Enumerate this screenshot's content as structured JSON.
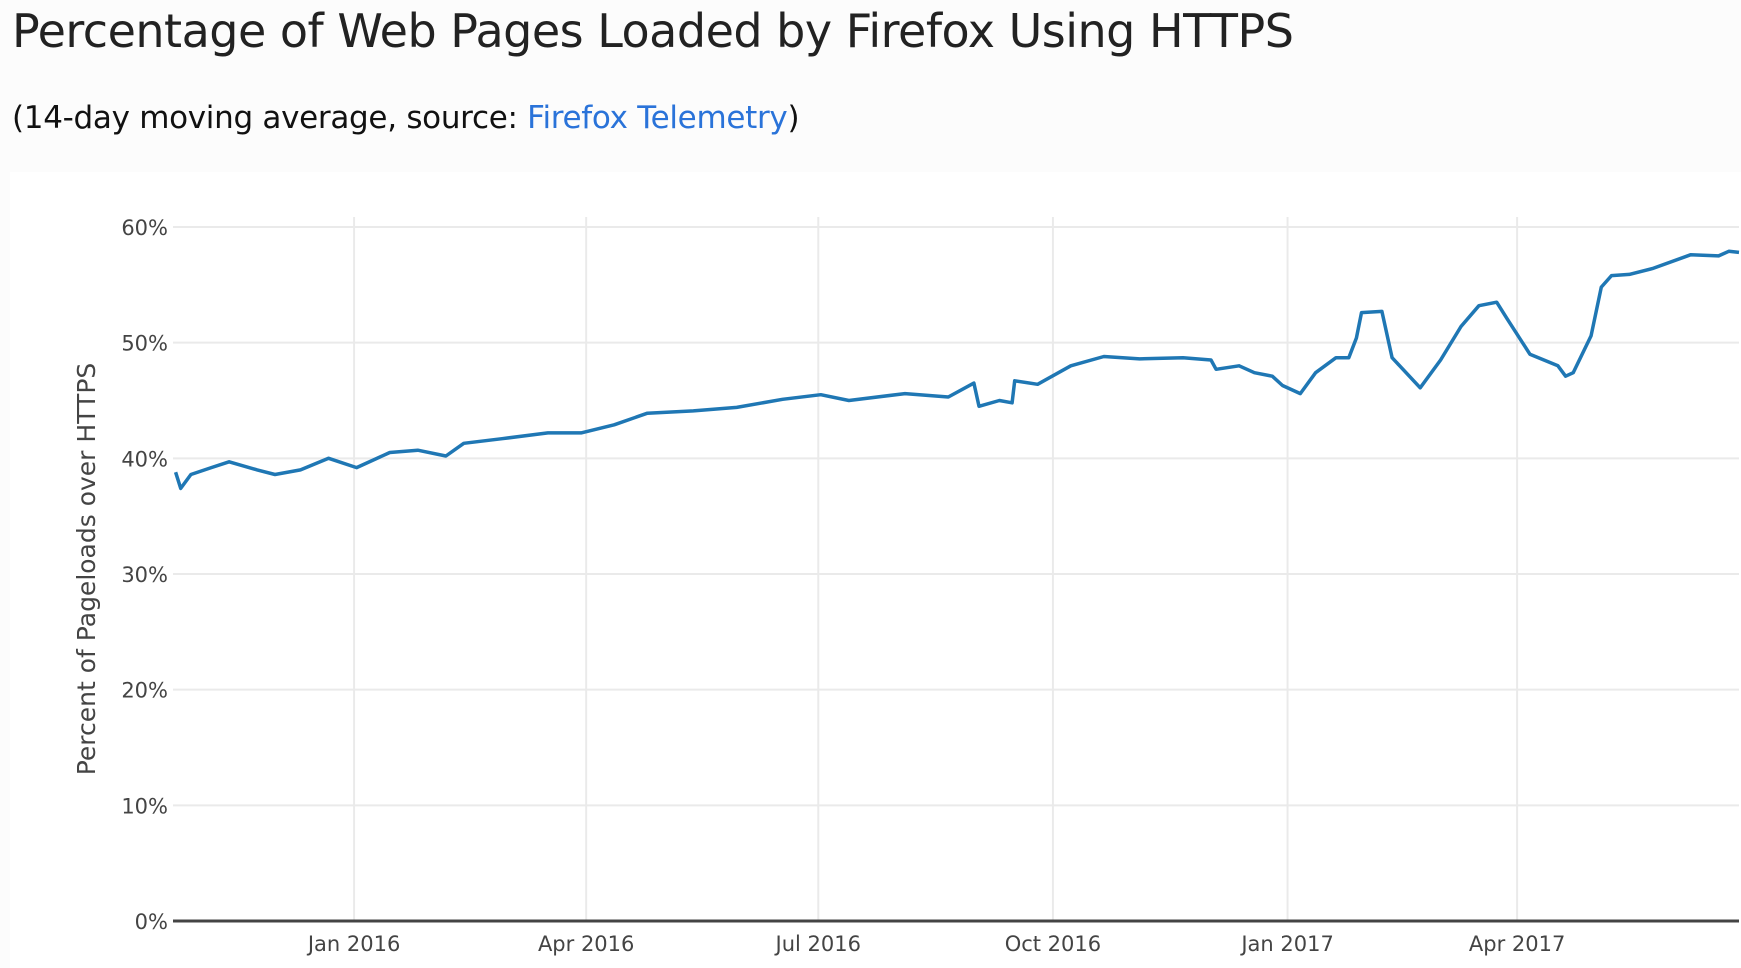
{
  "header": {
    "title": "Percentage of Web Pages Loaded by Firefox Using HTTPS",
    "subtitle_prefix": "(14-day moving average, source: ",
    "subtitle_link": "Firefox Telemetry",
    "subtitle_suffix": ")",
    "link_color": "#2a73d9"
  },
  "chart_data": {
    "type": "line",
    "title": "",
    "xlabel": "",
    "ylabel": "Percent of Pageloads over HTTPS",
    "xlim": [
      "2015-10-22",
      "2017-06-27"
    ],
    "ylim": [
      0,
      60
    ],
    "y_ticks": [
      0,
      10,
      20,
      30,
      40,
      50,
      60
    ],
    "y_tick_labels": [
      "0%",
      "10%",
      "20%",
      "30%",
      "40%",
      "50%",
      "60%"
    ],
    "x_ticks": [
      "2016-01-01",
      "2016-04-01",
      "2016-07-01",
      "2016-10-01",
      "2017-01-01",
      "2017-04-01"
    ],
    "x_tick_labels": [
      "Jan 2016",
      "Apr 2016",
      "Jul 2016",
      "Oct 2016",
      "Jan 2017",
      "Apr 2017"
    ],
    "grid": true,
    "line_color": "#1f77b4",
    "series": [
      {
        "x": [
          "2015-10-23",
          "2015-10-25",
          "2015-10-29",
          "2015-11-06",
          "2015-11-13",
          "2015-11-24",
          "2015-12-01",
          "2015-12-11",
          "2015-12-22",
          "2016-01-02",
          "2016-01-15",
          "2016-01-26",
          "2016-02-06",
          "2016-02-13",
          "2016-02-28",
          "2016-03-17",
          "2016-03-30",
          "2016-04-12",
          "2016-04-25",
          "2016-05-13",
          "2016-05-30",
          "2016-06-17",
          "2016-07-02",
          "2016-07-13",
          "2016-08-04",
          "2016-08-21",
          "2016-08-31",
          "2016-09-02",
          "2016-09-10",
          "2016-09-15",
          "2016-09-16",
          "2016-09-25",
          "2016-10-08",
          "2016-10-21",
          "2016-11-04",
          "2016-11-21",
          "2016-12-02",
          "2016-12-04",
          "2016-12-13",
          "2016-12-19",
          "2016-12-26",
          "2016-12-30",
          "2017-01-06",
          "2017-01-12",
          "2017-01-20",
          "2017-01-25",
          "2017-01-28",
          "2017-01-30",
          "2017-02-07",
          "2017-02-11",
          "2017-02-22",
          "2017-03-02",
          "2017-03-10",
          "2017-03-17",
          "2017-03-24",
          "2017-03-28",
          "2017-04-06",
          "2017-04-17",
          "2017-04-20",
          "2017-04-23",
          "2017-04-30",
          "2017-05-04",
          "2017-05-08",
          "2017-05-15",
          "2017-05-24",
          "2017-06-08",
          "2017-06-19",
          "2017-06-23",
          "2017-06-27"
        ],
        "y": [
          38.8,
          37.4,
          38.6,
          39.2,
          39.7,
          39.0,
          38.6,
          39.0,
          40.0,
          39.2,
          40.5,
          40.7,
          40.2,
          41.3,
          41.7,
          42.2,
          42.2,
          42.9,
          43.9,
          44.1,
          44.4,
          45.1,
          45.5,
          45.0,
          45.6,
          45.3,
          46.5,
          44.5,
          45.0,
          44.8,
          46.7,
          46.4,
          48.0,
          48.8,
          48.6,
          48.7,
          48.5,
          47.7,
          48.0,
          47.4,
          47.1,
          46.3,
          45.6,
          47.4,
          48.7,
          48.7,
          50.4,
          52.6,
          52.7,
          48.7,
          46.1,
          48.5,
          51.4,
          53.2,
          53.5,
          52.1,
          49.0,
          48.0,
          47.1,
          47.4,
          50.6,
          54.8,
          55.8,
          55.9,
          56.4,
          57.6,
          57.5,
          57.9,
          57.8
        ]
      }
    ]
  }
}
